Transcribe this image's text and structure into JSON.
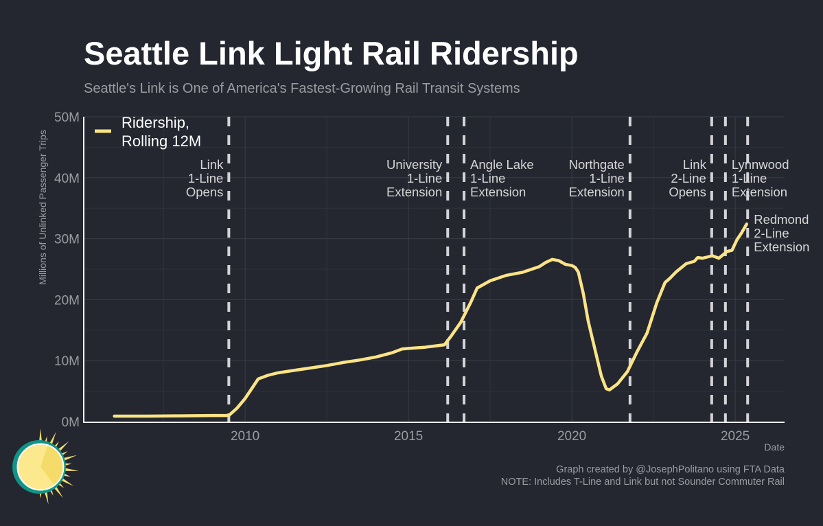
{
  "chart_data": {
    "type": "line",
    "title": "Seattle Link Light Rail Ridership",
    "subtitle": "Seattle's Link is One of America's Fastest-Growing Rail Transit Systems",
    "xlabel": "Date",
    "ylabel": "Millions of Unlinked Passenger Trips",
    "xlim": [
      2005.06,
      2026.51
    ],
    "ylim": [
      0,
      50
    ],
    "x_ticks": [
      2010,
      2015,
      2020,
      2025
    ],
    "x_tick_labels": [
      "2010",
      "2015",
      "2020",
      "2025"
    ],
    "y_ticks": [
      0,
      10,
      20,
      30,
      40,
      50
    ],
    "y_tick_labels": [
      "0M",
      "10M",
      "20M",
      "30M",
      "40M",
      "50M"
    ],
    "grid": true,
    "legend_placement": "top-left",
    "series": [
      {
        "name": "Ridership, Rolling 12M",
        "legend_lines": [
          "Ridership,",
          "Rolling 12M"
        ],
        "color": "#fbe485",
        "x": [
          2006.0,
          2007.0,
          2008.0,
          2009.0,
          2009.5,
          2009.75,
          2010.0,
          2010.2,
          2010.4,
          2010.7,
          2011.0,
          2011.5,
          2012.0,
          2012.5,
          2013.0,
          2013.5,
          2014.0,
          2014.5,
          2014.8,
          2015.0,
          2015.5,
          2016.1,
          2016.3,
          2016.6,
          2016.9,
          2017.1,
          2017.5,
          2018.0,
          2018.5,
          2019.0,
          2019.2,
          2019.4,
          2019.6,
          2019.8,
          2020.0,
          2020.1,
          2020.2,
          2020.35,
          2020.5,
          2020.7,
          2020.9,
          2021.05,
          2021.15,
          2021.4,
          2021.7,
          2022.0,
          2022.3,
          2022.6,
          2022.85,
          2023.0,
          2023.2,
          2023.5,
          2023.75,
          2023.85,
          2024.0,
          2024.3,
          2024.5,
          2024.75,
          2024.9,
          2025.05,
          2025.2,
          2025.35
        ],
        "y": [
          0.9,
          0.9,
          0.95,
          1.0,
          1.0,
          2.2,
          3.8,
          5.4,
          7.0,
          7.6,
          8.0,
          8.4,
          8.8,
          9.2,
          9.7,
          10.1,
          10.6,
          11.3,
          11.9,
          12.0,
          12.2,
          12.6,
          14.0,
          16.3,
          19.5,
          21.9,
          23.1,
          24.0,
          24.5,
          25.4,
          26.1,
          26.6,
          26.4,
          25.8,
          25.6,
          25.3,
          24.5,
          21.0,
          16.5,
          12.0,
          7.5,
          5.4,
          5.2,
          6.2,
          8.2,
          11.5,
          14.5,
          19.5,
          22.8,
          23.5,
          24.6,
          25.9,
          26.3,
          26.9,
          26.8,
          27.2,
          26.8,
          27.9,
          28.1,
          29.8,
          31.0,
          32.4
        ]
      }
    ],
    "annotations": [
      {
        "x": 2009.5,
        "lines": [
          "Link",
          "1-Line",
          "Opens"
        ],
        "side": "left"
      },
      {
        "x": 2016.2,
        "lines": [
          "University",
          "1-Line",
          "Extension"
        ],
        "side": "left"
      },
      {
        "x": 2016.7,
        "lines": [
          "Angle Lake",
          "1-Line",
          "Extension"
        ],
        "side": "right"
      },
      {
        "x": 2021.78,
        "lines": [
          "Northgate",
          "1-Line",
          "Extension"
        ],
        "side": "left"
      },
      {
        "x": 2024.28,
        "lines": [
          "Link",
          "2-Line",
          "Opens"
        ],
        "side": "left"
      },
      {
        "x": 2024.7,
        "lines": [
          "Lynnwood",
          "1-Line",
          "Extension"
        ],
        "side": "right"
      },
      {
        "x": 2025.38,
        "lines": [
          "Redmond",
          "2-Line",
          "Extension"
        ],
        "side": "right",
        "low": true
      }
    ]
  },
  "footer": {
    "credit": "Graph created by @JosephPolitano using FTA Data",
    "note": "NOTE: Includes T-Line and Link but not Sounder Commuter Rail"
  },
  "logo": "sun-logo-icon"
}
